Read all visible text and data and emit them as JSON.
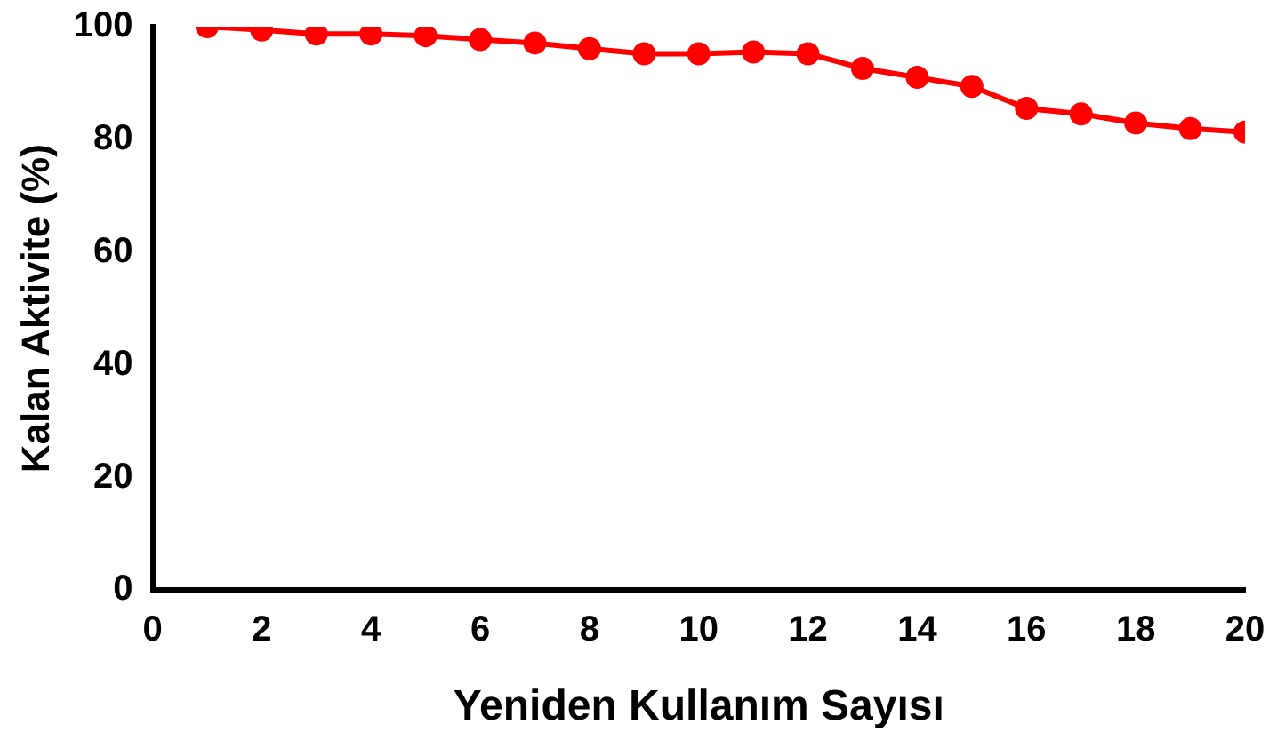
{
  "chart_data": {
    "type": "line",
    "xlabel": "Yeniden Kullanım Sayısı",
    "ylabel": "Kalan Aktivite (%)",
    "x": [
      1,
      2,
      3,
      4,
      5,
      6,
      7,
      8,
      9,
      10,
      11,
      12,
      13,
      14,
      15,
      16,
      17,
      18,
      19,
      20
    ],
    "series": [
      {
        "color": "#ff0000",
        "values": [
          100,
          99.4,
          98.7,
          98.7,
          98.4,
          97.7,
          97.1,
          96.1,
          95.2,
          95.2,
          95.5,
          95.2,
          92.6,
          91,
          89.4,
          85.5,
          84.5,
          82.9,
          81.9,
          81.3
        ]
      }
    ],
    "xlim": [
      0,
      20
    ],
    "xticks": [
      0,
      2,
      4,
      6,
      8,
      10,
      12,
      14,
      16,
      18,
      20
    ],
    "ylim": [
      0,
      100
    ],
    "yticks": [
      0,
      20,
      40,
      60,
      80,
      100
    ],
    "grid": false,
    "legend": false,
    "marker": "circle",
    "line_style": "solid"
  }
}
